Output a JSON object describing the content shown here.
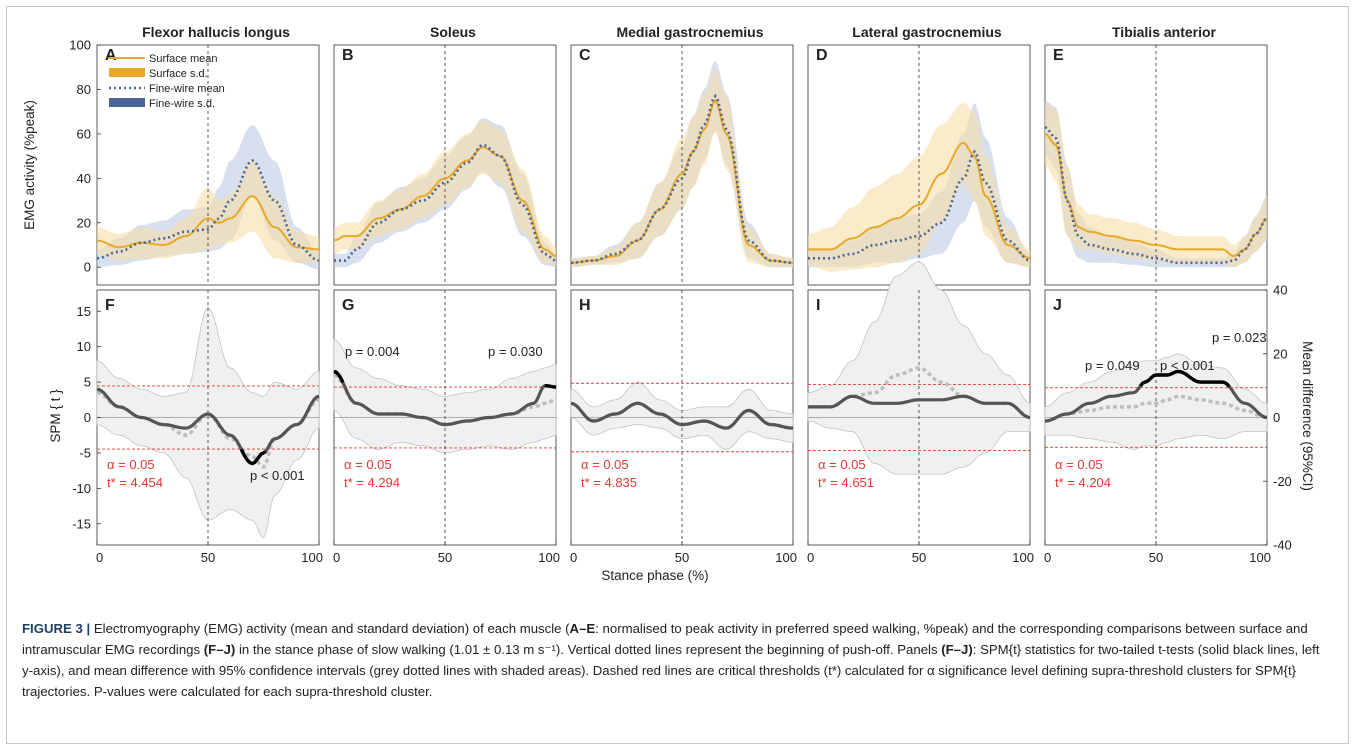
{
  "figure": {
    "y_label_top": "EMG activity (%peak)",
    "y_label_bottom_left": "SPM { t }",
    "y_label_bottom_right": "Mean difference (95%CI)",
    "x_label": "Stance phase (%)",
    "top_y_ticks": [
      "0",
      "20",
      "40",
      "60",
      "80",
      "100"
    ],
    "bottom_y_ticks": [
      "15",
      "10",
      "5",
      "0",
      "-5",
      "-10",
      "-15"
    ],
    "right_y_ticks": [
      "40",
      "20",
      "0",
      "-20",
      "-40"
    ],
    "x_ticks": [
      "0",
      "50",
      "100"
    ],
    "legend": [
      "Surface mean",
      "Surface s.d.",
      "Fine-wire mean",
      "Fine-wire s.d."
    ],
    "colors": {
      "surface": "#e8a82a",
      "surface_band": "#f7dfa6",
      "finewire": "#4a6596",
      "finewire_band": "#b8c5e2",
      "spm": "#555555",
      "diff": "#bdbdbd",
      "threshold": "#e53935",
      "sig": "#000000"
    }
  },
  "panels_top": [
    {
      "letter": "A",
      "title": "Flexor hallucis longus"
    },
    {
      "letter": "B",
      "title": "Soleus"
    },
    {
      "letter": "C",
      "title": "Medial gastrocnemius"
    },
    {
      "letter": "D",
      "title": "Lateral gastrocnemius"
    },
    {
      "letter": "E",
      "title": "Tibialis anterior"
    }
  ],
  "panels_bottom": [
    {
      "letter": "F",
      "alpha": "α  = 0.05",
      "tstar": "t* = 4.454",
      "p_values": [
        "p < 0.001"
      ]
    },
    {
      "letter": "G",
      "alpha": "α  = 0.05",
      "tstar": "t* = 4.294",
      "p_values": [
        "p = 0.004",
        "p = 0.030"
      ]
    },
    {
      "letter": "H",
      "alpha": "α  = 0.05",
      "tstar": "t* = 4.835",
      "p_values": []
    },
    {
      "letter": "I",
      "alpha": "α  = 0.05",
      "tstar": "t* = 4.651",
      "p_values": []
    },
    {
      "letter": "J",
      "alpha": "α  = 0.05",
      "tstar": "t* = 4.204",
      "p_values": [
        "p = 0.049",
        "p < 0.001",
        "p = 0.023"
      ]
    }
  ],
  "chart_data": [
    {
      "type": "line",
      "panel": "A",
      "title": "Flexor hallucis longus",
      "x": [
        0,
        10,
        20,
        30,
        40,
        50,
        55,
        60,
        70,
        80,
        90,
        100
      ],
      "series": [
        {
          "name": "Surface mean",
          "values": [
            12,
            9,
            11,
            10,
            14,
            22,
            20,
            22,
            32,
            18,
            9,
            8
          ],
          "sd": [
            6,
            6,
            7,
            6,
            8,
            14,
            10,
            11,
            16,
            14,
            7,
            6
          ]
        },
        {
          "name": "Fine-wire mean",
          "values": [
            4,
            7,
            11,
            13,
            16,
            17,
            22,
            30,
            48,
            30,
            10,
            3
          ],
          "sd": [
            4,
            6,
            8,
            8,
            10,
            10,
            14,
            18,
            16,
            18,
            8,
            4
          ]
        }
      ],
      "xlabel": "",
      "ylabel": "EMG activity (%peak)",
      "xlim": [
        0,
        100
      ],
      "ylim": [
        -8,
        100
      ]
    },
    {
      "type": "line",
      "panel": "B",
      "title": "Soleus",
      "x": [
        0,
        5,
        10,
        20,
        30,
        40,
        50,
        60,
        67,
        75,
        85,
        95,
        100
      ],
      "series": [
        {
          "name": "Surface mean",
          "values": [
            12,
            14,
            14,
            22,
            26,
            32,
            40,
            48,
            54,
            50,
            30,
            8,
            5
          ],
          "sd": [
            6,
            6,
            6,
            8,
            9,
            10,
            12,
            12,
            12,
            12,
            14,
            6,
            4
          ]
        },
        {
          "name": "Fine-wire mean",
          "values": [
            3,
            3,
            8,
            20,
            26,
            30,
            38,
            47,
            55,
            50,
            28,
            6,
            3
          ],
          "sd": [
            3,
            3,
            6,
            9,
            10,
            10,
            12,
            12,
            12,
            14,
            14,
            5,
            3
          ]
        }
      ],
      "xlabel": "",
      "ylabel": "",
      "xlim": [
        0,
        100
      ],
      "ylim": [
        -8,
        100
      ]
    },
    {
      "type": "line",
      "panel": "C",
      "title": "Medial gastrocnemius",
      "x": [
        0,
        10,
        20,
        30,
        40,
        50,
        55,
        60,
        65,
        70,
        80,
        90,
        100
      ],
      "series": [
        {
          "name": "Surface mean",
          "values": [
            2,
            3,
            5,
            12,
            26,
            42,
            52,
            62,
            75,
            60,
            10,
            3,
            2
          ],
          "sd": [
            2,
            2,
            4,
            8,
            12,
            16,
            16,
            16,
            14,
            16,
            8,
            3,
            2
          ]
        },
        {
          "name": "Fine-wire mean",
          "values": [
            2,
            3,
            6,
            12,
            26,
            40,
            52,
            64,
            77,
            62,
            12,
            3,
            2
          ],
          "sd": [
            2,
            2,
            4,
            8,
            12,
            14,
            16,
            16,
            16,
            16,
            8,
            3,
            2
          ]
        }
      ],
      "xlabel": "",
      "ylabel": "",
      "xlim": [
        0,
        100
      ],
      "ylim": [
        -8,
        100
      ]
    },
    {
      "type": "line",
      "panel": "D",
      "title": "Lateral gastrocnemius",
      "x": [
        0,
        10,
        20,
        30,
        40,
        50,
        60,
        70,
        75,
        80,
        90,
        100
      ],
      "series": [
        {
          "name": "Surface mean",
          "values": [
            8,
            8,
            13,
            18,
            22,
            28,
            42,
            56,
            50,
            32,
            10,
            4
          ],
          "sd": [
            7,
            10,
            14,
            18,
            20,
            22,
            22,
            18,
            20,
            18,
            8,
            4
          ]
        },
        {
          "name": "Fine-wire mean",
          "values": [
            4,
            4,
            6,
            10,
            12,
            14,
            20,
            40,
            52,
            38,
            12,
            3
          ],
          "sd": [
            4,
            4,
            6,
            8,
            10,
            10,
            14,
            20,
            22,
            20,
            10,
            3
          ]
        }
      ],
      "xlabel": "",
      "ylabel": "",
      "xlim": [
        0,
        100
      ],
      "ylim": [
        -8,
        100
      ]
    },
    {
      "type": "line",
      "panel": "E",
      "title": "Tibialis anterior",
      "x": [
        0,
        5,
        10,
        15,
        20,
        30,
        40,
        50,
        60,
        70,
        80,
        85,
        90,
        95,
        100
      ],
      "series": [
        {
          "name": "Surface mean",
          "values": [
            60,
            55,
            30,
            18,
            16,
            14,
            12,
            10,
            8,
            8,
            8,
            5,
            8,
            15,
            22
          ],
          "sd": [
            14,
            16,
            16,
            10,
            8,
            8,
            8,
            7,
            6,
            6,
            6,
            5,
            6,
            8,
            10
          ]
        },
        {
          "name": "Fine-wire mean",
          "values": [
            63,
            58,
            30,
            14,
            10,
            8,
            6,
            4,
            2,
            2,
            2,
            3,
            8,
            15,
            22
          ],
          "sd": [
            12,
            14,
            16,
            10,
            8,
            6,
            5,
            4,
            2,
            2,
            2,
            3,
            6,
            8,
            10
          ]
        }
      ],
      "xlabel": "",
      "ylabel": "",
      "xlim": [
        0,
        100
      ],
      "ylim": [
        -8,
        100
      ]
    },
    {
      "type": "line",
      "panel": "F",
      "threshold": 4.454,
      "x": [
        0,
        10,
        20,
        30,
        40,
        50,
        60,
        70,
        75,
        80,
        90,
        100
      ],
      "series": [
        {
          "name": "SPM{t}",
          "values": [
            4,
            1.5,
            0,
            -1,
            -1.5,
            0.5,
            -2.5,
            -6.5,
            -5,
            -3,
            -1,
            3
          ]
        },
        {
          "name": "Mean difference",
          "values": [
            3.5,
            1.5,
            0,
            -1,
            -2.5,
            0.5,
            -3,
            -5.5,
            -7,
            -3,
            -1,
            2.5
          ],
          "ci": [
            4.5,
            4,
            4,
            4,
            6,
            15,
            10,
            9,
            10,
            8,
            5,
            4
          ]
        }
      ],
      "xlabel": "",
      "ylabel": "SPM { t }",
      "xlim": [
        0,
        100
      ],
      "ylim": [
        -18,
        18
      ]
    },
    {
      "type": "line",
      "panel": "G",
      "threshold": 4.294,
      "x": [
        0,
        10,
        20,
        30,
        40,
        50,
        60,
        70,
        80,
        90,
        95,
        100
      ],
      "series": [
        {
          "name": "SPM{t}",
          "values": [
            6.5,
            2,
            0.5,
            0.5,
            0,
            -1,
            -0.5,
            0,
            0.5,
            2,
            4.5,
            4.3
          ]
        },
        {
          "name": "Mean difference",
          "values": [
            6,
            2,
            0.5,
            0.5,
            0,
            -1,
            -0.5,
            0,
            0.5,
            1.5,
            2,
            2.5
          ],
          "ci": [
            5,
            5,
            5,
            4,
            4,
            4,
            4,
            4,
            5,
            5,
            5,
            5
          ]
        }
      ],
      "xlabel": "",
      "ylabel": "",
      "xlim": [
        0,
        100
      ],
      "ylim": [
        -18,
        18
      ]
    },
    {
      "type": "line",
      "panel": "H",
      "threshold": 4.835,
      "x": [
        0,
        10,
        20,
        30,
        40,
        50,
        60,
        70,
        80,
        90,
        100
      ],
      "series": [
        {
          "name": "SPM{t}",
          "values": [
            2,
            -0.5,
            0.5,
            2,
            0.5,
            -1,
            -0.5,
            -1.5,
            1,
            -1,
            -1.5
          ]
        },
        {
          "name": "Mean difference",
          "values": [
            2,
            -0.5,
            0.5,
            2,
            0.5,
            -1,
            -0.5,
            -1.5,
            1,
            -1,
            -1.5
          ],
          "ci": [
            2,
            2,
            2,
            3,
            2,
            2,
            2,
            3,
            3,
            2,
            2
          ]
        }
      ],
      "xlabel": "",
      "ylabel": "",
      "xlim": [
        0,
        100
      ],
      "ylim": [
        -18,
        18
      ]
    },
    {
      "type": "line",
      "panel": "I",
      "threshold": 4.651,
      "x": [
        0,
        10,
        20,
        30,
        40,
        50,
        60,
        70,
        80,
        90,
        100
      ],
      "series": [
        {
          "name": "SPM{t}",
          "values": [
            1.5,
            1.5,
            3,
            2,
            2,
            2.5,
            2.5,
            3,
            2,
            2,
            0
          ]
        },
        {
          "name": "Mean difference",
          "values": [
            1.5,
            1.5,
            3,
            3.5,
            6,
            7,
            5,
            3,
            2,
            2,
            0
          ],
          "ci": [
            2,
            3,
            5,
            10,
            14,
            15,
            13,
            10,
            7,
            4,
            2
          ]
        }
      ],
      "xlabel": "",
      "ylabel": "",
      "xlim": [
        0,
        100
      ],
      "ylim": [
        -18,
        18
      ]
    },
    {
      "type": "line",
      "panel": "J",
      "threshold": 4.204,
      "x": [
        0,
        10,
        20,
        30,
        40,
        45,
        50,
        55,
        60,
        70,
        80,
        90,
        100
      ],
      "series": [
        {
          "name": "SPM{t}",
          "values": [
            -0.5,
            0.5,
            2,
            3,
            3.5,
            5,
            6,
            6,
            6.5,
            5,
            5,
            2,
            0
          ]
        },
        {
          "name": "Mean difference",
          "values": [
            -0.5,
            0.5,
            1,
            1.5,
            1.5,
            2,
            2,
            2.5,
            3,
            2.5,
            2,
            1,
            0
          ],
          "ci": [
            2,
            3,
            4,
            5,
            6,
            6,
            6,
            6,
            6,
            5,
            5,
            3,
            2
          ]
        }
      ],
      "xlabel": "",
      "ylabel": "",
      "xlim": [
        0,
        100
      ],
      "ylim": [
        -18,
        18
      ]
    }
  ],
  "caption": {
    "lead": "FIGURE 3 |",
    "parts": [
      {
        "t": " Electromyography (EMG) activity (mean and standard deviation) of each muscle ("
      },
      {
        "t": "A–E",
        "b": true
      },
      {
        "t": ": normalised to peak activity in preferred speed walking, %peak) and the corresponding comparisons between surface and intramuscular EMG recordings "
      },
      {
        "t": "(F–J)",
        "b": true
      },
      {
        "t": " in the stance phase of slow walking (1.01 ± 0.13 m s⁻¹). Vertical dotted lines represent the beginning of push-off. Panels "
      },
      {
        "t": "(F–J)",
        "b": true
      },
      {
        "t": ": SPM{t} statistics for two-tailed t-tests (solid black lines, left y-axis), and mean difference with 95% confidence intervals (grey dotted lines with shaded areas). Dashed red lines are critical thresholds (t*) calculated for α significance level defining supra-threshold clusters for SPM{t} trajectories. P-values were calculated for each supra-threshold cluster."
      }
    ]
  }
}
